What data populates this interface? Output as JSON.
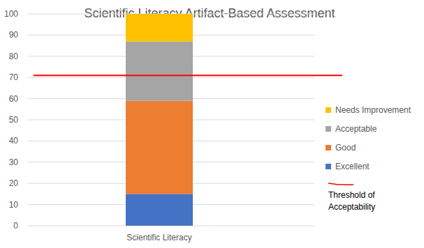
{
  "chart_data": {
    "type": "bar",
    "title": "Scientific Literacy Artifact-Based Assessment",
    "categories": [
      "Scientific Literacy"
    ],
    "series": [
      {
        "name": "Excellent",
        "color": "#4472c4",
        "values": [
          15
        ]
      },
      {
        "name": "Good",
        "color": "#ed7d31",
        "values": [
          44
        ]
      },
      {
        "name": "Acceptable",
        "color": "#a5a5a5",
        "values": [
          28
        ]
      },
      {
        "name": "Needs Improvement",
        "color": "#ffc000",
        "values": [
          13
        ]
      }
    ],
    "stacked": true,
    "ylim": [
      0,
      100
    ],
    "yticks": [
      0,
      10,
      20,
      30,
      40,
      50,
      60,
      70,
      80,
      90,
      100
    ],
    "grid": true,
    "legend": "right",
    "threshold": {
      "value": 71,
      "label": "Threshold of Acceptability",
      "color": "#ff0000"
    }
  }
}
